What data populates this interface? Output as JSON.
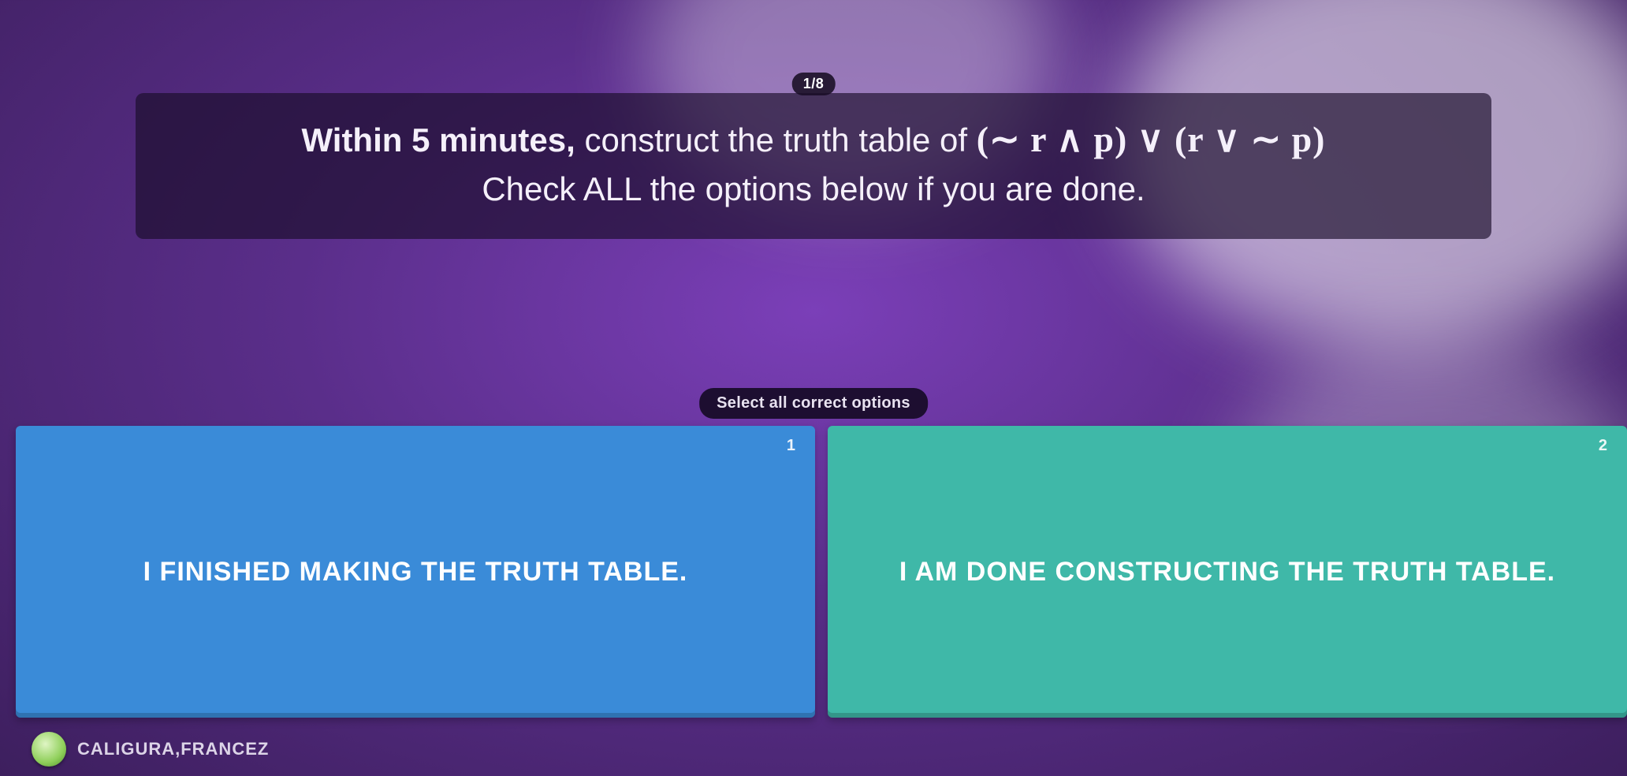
{
  "progress": {
    "label": "1/8"
  },
  "question": {
    "prefix_bold": "Within 5 minutes,",
    "prefix_rest": " construct the truth table of ",
    "formula": "(∼ r ∧ p) ∨ (r ∨ ∼ p)",
    "line2": "Check ALL the options below if you are done."
  },
  "hint": "Select all correct options",
  "options": [
    {
      "key": "1",
      "label": "I FINISHED MAKING THE TRUTH TABLE.",
      "bg": "#3a8bd8"
    },
    {
      "key": "2",
      "label": "I AM DONE CONSTRUCTING THE TRUTH TABLE.",
      "bg": "#3fb8a8"
    }
  ],
  "footer": {
    "username": "CALIGURA,FRANCEZ"
  },
  "style": {
    "question_fontsize": 42,
    "formula_fontsize": 46,
    "option_fontsize": 34,
    "hint_fontsize": 20,
    "counter_fontsize": 18,
    "username_fontsize": 22,
    "background_gradient": [
      "#7b3fb8",
      "#5a2e8a",
      "#3d1f5e"
    ],
    "question_box_bg": "rgba(25,12,40,0.65)",
    "pill_bg": "rgba(20,10,30,0.85)",
    "text_color": "#f5f0fa"
  }
}
